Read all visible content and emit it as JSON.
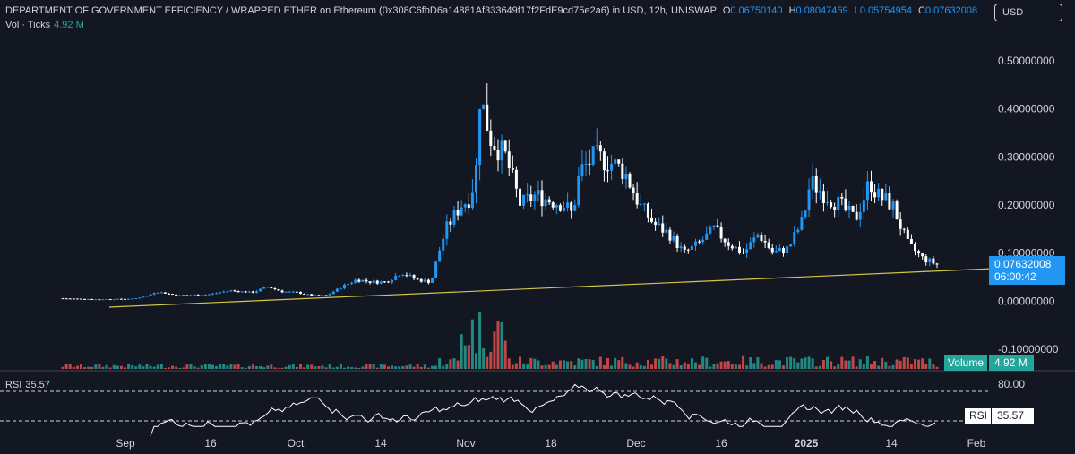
{
  "header": {
    "title": "DEPARTMENT OF GOVERNMENT EFFICIENCY / WRAPPED ETHER on Ethereum (0x308C6fbD6a14881Af333649f17f2FdE9cd75e2a6) in USD, 12h, UNISWAP",
    "o_label": "O",
    "o_value": "0.06750140",
    "h_label": "H",
    "h_value": "0.08047459",
    "l_label": "L",
    "l_value": "0.05754954",
    "c_label": "C",
    "c_value": "0.07632008"
  },
  "volume_legend": {
    "label": "Vol · Ticks",
    "value": "4.92 M"
  },
  "currency_button": "USD",
  "price_label": {
    "value": "0.07632008",
    "countdown": "06:00:42"
  },
  "volume_label": {
    "label": "Volume",
    "value": "4.92 M"
  },
  "rsi": {
    "label": "RSI",
    "value": "35.57",
    "level_label": "80.00"
  },
  "colors": {
    "background": "#131722",
    "up": "#2196f3",
    "down": "#ffffff",
    "trendline": "#d4c44a",
    "vol_up": "#26a69a",
    "vol_down": "#ef5350",
    "rsi_line": "#ffffff"
  },
  "chart_data": {
    "type": "candlestick",
    "y_ticks": [
      "0.50000000",
      "0.40000000",
      "0.30000000",
      "0.20000000",
      "0.10000000",
      "0.00000000",
      "-0.10000000"
    ],
    "ylim": [
      -0.1,
      0.5
    ],
    "x_ticks": [
      "Sep",
      "16",
      "Oct",
      "14",
      "Nov",
      "18",
      "Dec",
      "16",
      "2025",
      "14",
      "Feb"
    ],
    "price_path": [
      [
        0,
        0.006
      ],
      [
        0.05,
        0.004
      ],
      [
        0.1,
        0.005
      ],
      [
        0.12,
        0.012
      ],
      [
        0.13,
        0.02
      ],
      [
        0.16,
        0.012
      ],
      [
        0.2,
        0.014
      ],
      [
        0.23,
        0.022
      ],
      [
        0.26,
        0.018
      ],
      [
        0.28,
        0.03
      ],
      [
        0.3,
        0.02
      ],
      [
        0.32,
        0.018
      ],
      [
        0.34,
        0.012
      ],
      [
        0.36,
        0.012
      ],
      [
        0.38,
        0.03
      ],
      [
        0.4,
        0.045
      ],
      [
        0.42,
        0.04
      ],
      [
        0.44,
        0.04
      ],
      [
        0.46,
        0.06
      ],
      [
        0.48,
        0.045
      ],
      [
        0.5,
        0.04
      ],
      [
        0.51,
        0.1
      ],
      [
        0.52,
        0.15
      ],
      [
        0.54,
        0.2
      ],
      [
        0.55,
        0.21
      ],
      [
        0.56,
        0.26
      ],
      [
        0.565,
        0.43
      ],
      [
        0.58,
        0.34
      ],
      [
        0.6,
        0.3
      ],
      [
        0.62,
        0.2
      ],
      [
        0.64,
        0.22
      ],
      [
        0.66,
        0.21
      ],
      [
        0.68,
        0.2
      ],
      [
        0.69,
        0.18
      ],
      [
        0.7,
        0.27
      ],
      [
        0.72,
        0.3
      ],
      [
        0.74,
        0.29
      ],
      [
        0.76,
        0.27
      ],
      [
        0.78,
        0.2
      ],
      [
        0.8,
        0.16
      ],
      [
        0.82,
        0.14
      ],
      [
        0.84,
        0.1
      ],
      [
        0.86,
        0.12
      ],
      [
        0.88,
        0.15
      ],
      [
        0.9,
        0.12
      ],
      [
        0.92,
        0.1
      ],
      [
        0.94,
        0.14
      ],
      [
        0.96,
        0.1
      ],
      [
        0.98,
        0.11
      ],
      [
        1.0,
        0.17
      ],
      [
        1.01,
        0.25
      ],
      [
        1.03,
        0.22
      ],
      [
        1.05,
        0.2
      ],
      [
        1.07,
        0.17
      ],
      [
        1.09,
        0.25
      ],
      [
        1.1,
        0.22
      ],
      [
        1.12,
        0.2
      ],
      [
        1.14,
        0.12
      ],
      [
        1.16,
        0.09
      ],
      [
        1.18,
        0.076
      ]
    ]
  }
}
